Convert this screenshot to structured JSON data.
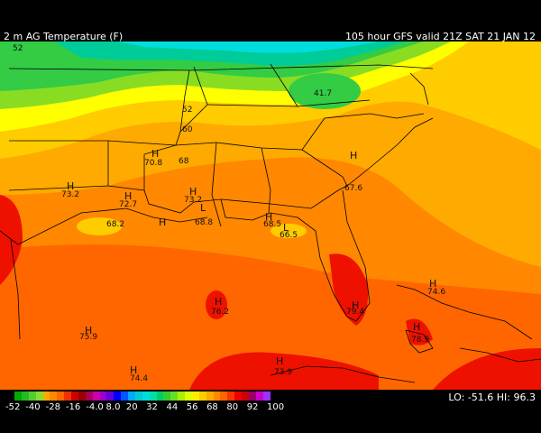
{
  "header": {
    "title": "2 m AG Temperature (F)",
    "valid": "105 hour GFS valid 21Z SAT 21 JAN 12"
  },
  "stats": {
    "lo_label": "LO:",
    "lo_value": "-51.6",
    "hi_label": "HI:",
    "hi_value": "96.3"
  },
  "legend": {
    "ticks": [
      "-52",
      "-40",
      "-28",
      "-16",
      "-4.0",
      "8.0",
      "20",
      "32",
      "44",
      "56",
      "68",
      "80",
      "92",
      "100"
    ],
    "colors": [
      "#00aa00",
      "#22bb22",
      "#55cc33",
      "#88dd33",
      "#ffaa00",
      "#ff8800",
      "#ff6600",
      "#ee3300",
      "#cc0000",
      "#990000",
      "#aa0055",
      "#cc00aa",
      "#9900cc",
      "#6600dd",
      "#0000ff",
      "#0055ff",
      "#00aaff",
      "#00cccc",
      "#00dddd",
      "#00ddaa",
      "#00cc66",
      "#33cc33",
      "#66dd22",
      "#aaee00",
      "#ddff00",
      "#ffee00",
      "#ffcc00",
      "#ffaa00",
      "#ff8800",
      "#ff6600",
      "#ff3300",
      "#ee0000",
      "#cc0000",
      "#990066",
      "#cc00cc",
      "#9933ff"
    ]
  },
  "map": {
    "field_colors": {
      "cyan": "#00dddd",
      "teal": "#00cc99",
      "green": "#33cc44",
      "ltgreen": "#88dd22",
      "yellow": "#ffff00",
      "ltorange": "#ffcc00",
      "orange": "#ffaa00",
      "dorange": "#ff8800",
      "redorange": "#ff6600",
      "red": "#ee1100",
      "dred": "#cc0000"
    },
    "labels": [
      {
        "text": "52",
        "name": "label-52-nw"
      },
      {
        "text": "52",
        "name": "label-52-ms"
      },
      {
        "text": "60",
        "name": "label-60"
      },
      {
        "text": "41.7",
        "name": "label-41-7"
      },
      {
        "text": "70.8",
        "name": "label-70-8"
      },
      {
        "text": "68",
        "name": "label-68"
      },
      {
        "text": "73.2",
        "name": "label-73-2-tx"
      },
      {
        "text": "72.7",
        "name": "label-72-7"
      },
      {
        "text": "73.2",
        "name": "label-73-2-la"
      },
      {
        "text": "68.2",
        "name": "label-68-2"
      },
      {
        "text": "68.8",
        "name": "label-68-8"
      },
      {
        "text": "68.5",
        "name": "label-68-5"
      },
      {
        "text": "66.5",
        "name": "label-66-5"
      },
      {
        "text": "67.6",
        "name": "label-67-6"
      },
      {
        "text": "76.2",
        "name": "label-76-2"
      },
      {
        "text": "75.9",
        "name": "label-75-9"
      },
      {
        "text": "79.4",
        "name": "label-79-4"
      },
      {
        "text": "74.6",
        "name": "label-74-6"
      },
      {
        "text": "78.9",
        "name": "label-78-9"
      },
      {
        "text": "74.4",
        "name": "label-74-4"
      },
      {
        "text": "73.9",
        "name": "label-73-9"
      }
    ],
    "highs": "H",
    "lows": "L"
  }
}
